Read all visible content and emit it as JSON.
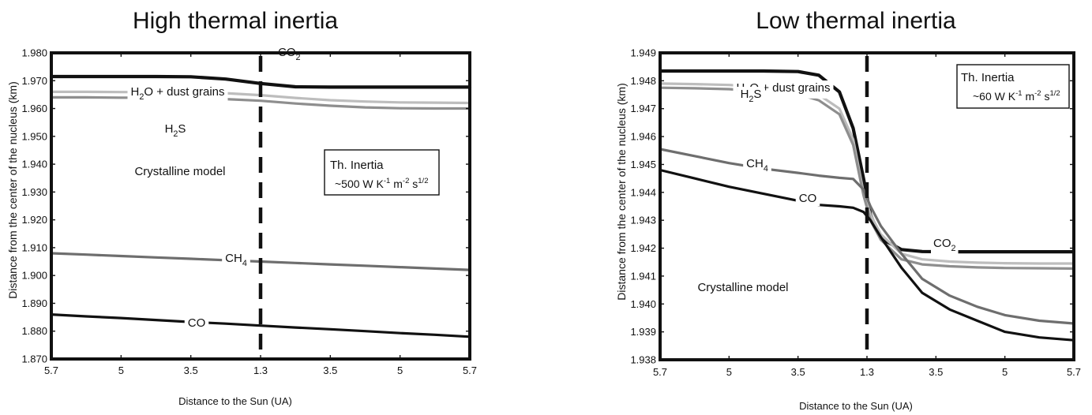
{
  "chart_data": [
    {
      "type": "line",
      "title": "High thermal inertia",
      "xlabel": "Distance to the Sun (UA)",
      "ylabel": "Distance from the center of the nucleus (km)",
      "xtick_labels": [
        "5.7",
        "5",
        "3.5",
        "1.3",
        "3.5",
        "5",
        "5.7"
      ],
      "ylim": [
        1.87,
        1.98
      ],
      "yticks": [
        "1.870",
        "1.880",
        "1.890",
        "1.900",
        "1.910",
        "1.920",
        "1.930",
        "1.940",
        "1.950",
        "1.960",
        "1.970",
        "1.980"
      ],
      "grid": false,
      "perihelion_marker": "1.3",
      "x": [
        0,
        0.5,
        1.0,
        1.5,
        2.0,
        2.5,
        3.0,
        3.5,
        4.0,
        4.5,
        5.0,
        5.5,
        6.0
      ],
      "series": [
        {
          "label_parts": [
            {
              "t": "H"
            },
            {
              "t": "2",
              "sub": true
            },
            {
              "t": "O + dust grains"
            }
          ],
          "color": "#111111",
          "values": [
            1.9715,
            1.9715,
            1.9715,
            1.9715,
            1.9714,
            1.9706,
            1.969,
            1.9678,
            1.9677,
            1.9677,
            1.9677,
            1.9677,
            1.9677
          ]
        },
        {
          "label_parts": [
            {
              "t": "CO"
            },
            {
              "t": "2",
              "sub": true
            }
          ],
          "color": "#bdbdbd",
          "values": [
            1.966,
            1.966,
            1.9659,
            1.9659,
            1.9658,
            1.9655,
            1.9648,
            1.9638,
            1.963,
            1.9625,
            1.9622,
            1.9621,
            1.962
          ]
        },
        {
          "label_parts": [
            {
              "t": "H"
            },
            {
              "t": "2",
              "sub": true
            },
            {
              "t": "S"
            }
          ],
          "color": "#8e8e8e",
          "values": [
            1.964,
            1.964,
            1.9639,
            1.9639,
            1.9638,
            1.9634,
            1.9628,
            1.9618,
            1.961,
            1.9604,
            1.9601,
            1.96,
            1.96
          ]
        },
        {
          "label_parts": [
            {
              "t": "CH"
            },
            {
              "t": "4",
              "sub": true
            }
          ],
          "color": "#6e6e6e",
          "values": [
            1.908,
            1.9075,
            1.907,
            1.9065,
            1.906,
            1.9055,
            1.905,
            1.9045,
            1.904,
            1.9035,
            1.903,
            1.9025,
            1.902
          ]
        },
        {
          "label_parts": [
            {
              "t": "CO"
            }
          ],
          "color": "#111111",
          "values": [
            1.886,
            1.8853,
            1.8847,
            1.884,
            1.8833,
            1.8827,
            1.882,
            1.8813,
            1.8807,
            1.88,
            1.8793,
            1.8787,
            1.878
          ]
        }
      ],
      "annotations": {
        "model_text": "Crystalline model",
        "inertia_line1": "Th. Inertia",
        "inertia_parts": [
          {
            "t": "~500 W K"
          },
          {
            "t": "-1",
            "sup": true
          },
          {
            "t": " m"
          },
          {
            "t": "-2",
            "sup": true
          },
          {
            "t": " s"
          },
          {
            "t": "1/2",
            "sup": true
          }
        ]
      }
    },
    {
      "type": "line",
      "title": "Low thermal inertia",
      "xlabel": "Distance to the Sun (UA)",
      "ylabel": "Distance from the center of the nucleus (km)",
      "xtick_labels": [
        "5.7",
        "5",
        "3.5",
        "1.3",
        "3.5",
        "5",
        "5.7"
      ],
      "ylim": [
        1.938,
        1.949
      ],
      "yticks": [
        "1.938",
        "1.939",
        "1.940",
        "1.941",
        "1.942",
        "1.943",
        "1.944",
        "1.945",
        "1.946",
        "1.947",
        "1.948",
        "1.949"
      ],
      "grid": false,
      "perihelion_marker": "1.3",
      "x": [
        0,
        0.5,
        1.0,
        1.5,
        2.0,
        2.3,
        2.6,
        2.8,
        2.95,
        3.05,
        3.2,
        3.5,
        3.8,
        4.2,
        4.6,
        5.0,
        5.5,
        6.0
      ],
      "series": [
        {
          "label_parts": [
            {
              "t": "H"
            },
            {
              "t": "2",
              "sub": true
            },
            {
              "t": "O + dust grains"
            }
          ],
          "color": "#111111",
          "values": [
            1.94835,
            1.94835,
            1.94835,
            1.94835,
            1.94833,
            1.9482,
            1.9476,
            1.9463,
            1.9445,
            1.9432,
            1.94235,
            1.94195,
            1.94188,
            1.94187,
            1.94187,
            1.94187,
            1.94187,
            1.94187
          ]
        },
        {
          "label_parts": [
            {
              "t": "CO"
            },
            {
              "t": "2",
              "sub": true
            }
          ],
          "color": "#bdbdbd",
          "values": [
            1.9479,
            1.94788,
            1.94785,
            1.94778,
            1.9477,
            1.9475,
            1.947,
            1.9459,
            1.944,
            1.9432,
            1.9425,
            1.9418,
            1.9416,
            1.94152,
            1.94148,
            1.94146,
            1.94145,
            1.94145
          ]
        },
        {
          "label_parts": [
            {
              "t": "H"
            },
            {
              "t": "2",
              "sub": true
            },
            {
              "t": "S"
            }
          ],
          "color": "#8e8e8e",
          "values": [
            1.94775,
            1.94773,
            1.9477,
            1.94762,
            1.94752,
            1.9473,
            1.9468,
            1.9457,
            1.9439,
            1.943,
            1.9423,
            1.9416,
            1.94142,
            1.94135,
            1.94131,
            1.94129,
            1.94128,
            1.94127
          ]
        },
        {
          "label_parts": [
            {
              "t": "CH"
            },
            {
              "t": "4",
              "sub": true
            }
          ],
          "color": "#6e6e6e",
          "values": [
            1.94555,
            1.9453,
            1.94505,
            1.94485,
            1.9447,
            1.9446,
            1.94452,
            1.94448,
            1.9441,
            1.9435,
            1.9428,
            1.9418,
            1.9409,
            1.9403,
            1.9399,
            1.9396,
            1.9394,
            1.9393
          ]
        },
        {
          "label_parts": [
            {
              "t": "CO"
            }
          ],
          "color": "#111111",
          "values": [
            1.9448,
            1.9445,
            1.9442,
            1.94395,
            1.9437,
            1.94355,
            1.9435,
            1.94345,
            1.9433,
            1.943,
            1.9424,
            1.9413,
            1.9404,
            1.9398,
            1.9394,
            1.939,
            1.9388,
            1.9387
          ]
        }
      ],
      "annotations": {
        "model_text": "Crystalline model",
        "inertia_line1": "Th. Inertia",
        "inertia_parts": [
          {
            "t": "~60 W K"
          },
          {
            "t": "-1",
            "sup": true
          },
          {
            "t": " m"
          },
          {
            "t": "-2",
            "sup": true
          },
          {
            "t": " s"
          },
          {
            "t": "1/2",
            "sup": true
          }
        ]
      }
    }
  ]
}
